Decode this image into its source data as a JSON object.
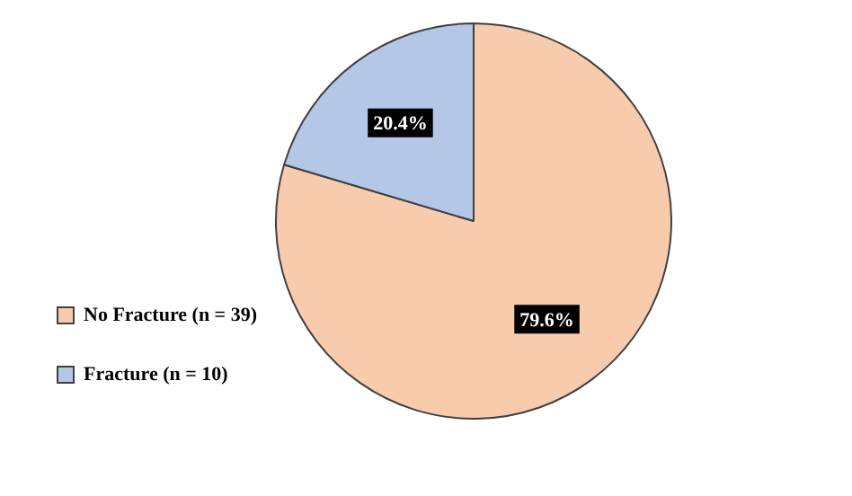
{
  "chart_data": {
    "type": "pie",
    "categories": [
      "No Fracture (n = 39)",
      "Fracture (n = 10)"
    ],
    "values": [
      79.6,
      20.4
    ],
    "colors": [
      "#f8cbad",
      "#b4c7e7"
    ],
    "value_labels": [
      "79.6%",
      "20.4%"
    ],
    "legend": "bottom left"
  }
}
